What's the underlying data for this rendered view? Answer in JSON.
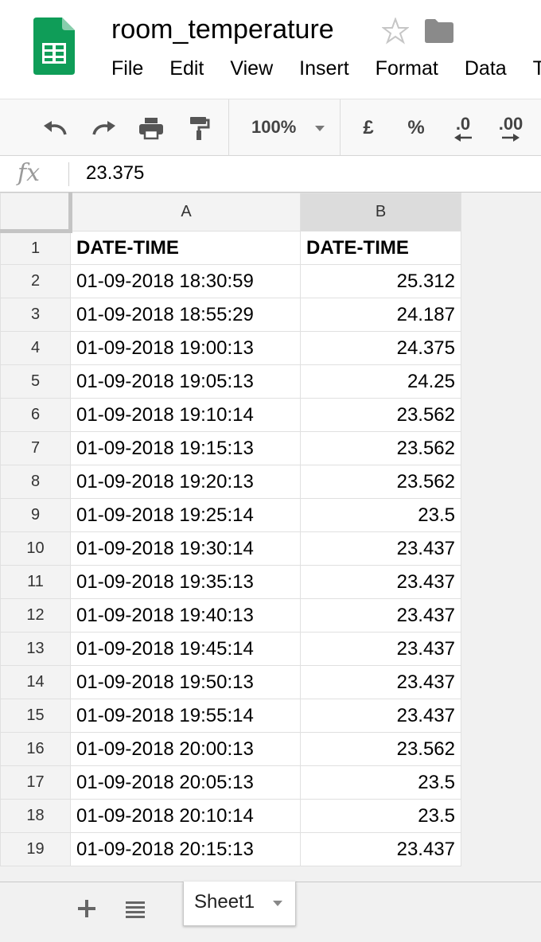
{
  "app": {
    "title": "room_temperature",
    "menu": [
      "File",
      "Edit",
      "View",
      "Insert",
      "Format",
      "Data",
      "T"
    ]
  },
  "toolbar": {
    "zoom": "100%",
    "currency": "£",
    "percent": "%",
    "decrease_decimals": ".0",
    "increase_decimals": ".00",
    "icons": [
      "undo-icon",
      "redo-icon",
      "print-icon",
      "paint-format-icon"
    ]
  },
  "formula_bar": {
    "fx": "fx",
    "value": "23.375"
  },
  "sheet": {
    "columns": [
      "A",
      "B"
    ],
    "selected_column": "B",
    "rows": [
      {
        "n": "1",
        "a": "DATE-TIME",
        "b": "DATE-TIME"
      },
      {
        "n": "2",
        "a": "01-09-2018 18:30:59",
        "b": "25.312"
      },
      {
        "n": "3",
        "a": "01-09-2018 18:55:29",
        "b": "24.187"
      },
      {
        "n": "4",
        "a": "01-09-2018 19:00:13",
        "b": "24.375"
      },
      {
        "n": "5",
        "a": "01-09-2018 19:05:13",
        "b": "24.25"
      },
      {
        "n": "6",
        "a": "01-09-2018 19:10:14",
        "b": "23.562"
      },
      {
        "n": "7",
        "a": "01-09-2018 19:15:13",
        "b": "23.562"
      },
      {
        "n": "8",
        "a": "01-09-2018 19:20:13",
        "b": "23.562"
      },
      {
        "n": "9",
        "a": "01-09-2018 19:25:14",
        "b": "23.5"
      },
      {
        "n": "10",
        "a": "01-09-2018 19:30:14",
        "b": "23.437"
      },
      {
        "n": "11",
        "a": "01-09-2018 19:35:13",
        "b": "23.437"
      },
      {
        "n": "12",
        "a": "01-09-2018 19:40:13",
        "b": "23.437"
      },
      {
        "n": "13",
        "a": "01-09-2018 19:45:14",
        "b": "23.437"
      },
      {
        "n": "14",
        "a": "01-09-2018 19:50:13",
        "b": "23.437"
      },
      {
        "n": "15",
        "a": "01-09-2018 19:55:14",
        "b": "23.437"
      },
      {
        "n": "16",
        "a": "01-09-2018 20:00:13",
        "b": "23.562"
      },
      {
        "n": "17",
        "a": "01-09-2018 20:05:13",
        "b": "23.5"
      },
      {
        "n": "18",
        "a": "01-09-2018 20:10:14",
        "b": "23.5"
      },
      {
        "n": "19",
        "a": "01-09-2018 20:15:13",
        "b": "23.437"
      }
    ]
  },
  "tabs": {
    "active": "Sheet1"
  },
  "colors": {
    "logo_green": "#0f9d58",
    "grid_line": "#e0e0e0",
    "header_bg": "#f3f3f3"
  }
}
